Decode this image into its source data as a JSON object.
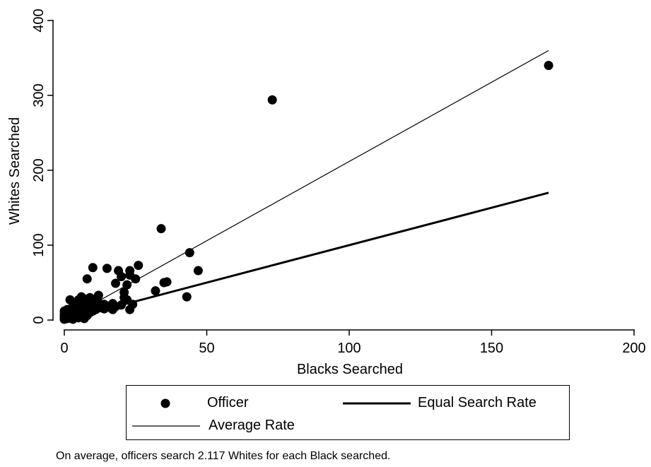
{
  "chart_data": {
    "type": "scatter",
    "xlabel": "Blacks Searched",
    "ylabel": "Whites Searched",
    "xlim": [
      0,
      200
    ],
    "ylim": [
      0,
      400
    ],
    "xticks": [
      "0",
      "50",
      "100",
      "150",
      "200"
    ],
    "yticks": [
      "0",
      "100",
      "200",
      "300",
      "400"
    ],
    "grid": false,
    "legend_position": "bottom",
    "series": [
      {
        "name": "Officer",
        "kind": "scatter",
        "points": [
          [
            0,
            1
          ],
          [
            0,
            3
          ],
          [
            0,
            5
          ],
          [
            0,
            8
          ],
          [
            0,
            12
          ],
          [
            1,
            2
          ],
          [
            1,
            4
          ],
          [
            1,
            6
          ],
          [
            1,
            10
          ],
          [
            1,
            14
          ],
          [
            2,
            3
          ],
          [
            2,
            5
          ],
          [
            2,
            8
          ],
          [
            2,
            11
          ],
          [
            2,
            27
          ],
          [
            3,
            1
          ],
          [
            3,
            6
          ],
          [
            3,
            9
          ],
          [
            3,
            13
          ],
          [
            3,
            18
          ],
          [
            4,
            4
          ],
          [
            4,
            7
          ],
          [
            4,
            12
          ],
          [
            4,
            16
          ],
          [
            4,
            22
          ],
          [
            5,
            3
          ],
          [
            5,
            9
          ],
          [
            5,
            14
          ],
          [
            5,
            20
          ],
          [
            5,
            27
          ],
          [
            6,
            5
          ],
          [
            6,
            11
          ],
          [
            6,
            17
          ],
          [
            6,
            24
          ],
          [
            6,
            31
          ],
          [
            7,
            2
          ],
          [
            7,
            8
          ],
          [
            7,
            15
          ],
          [
            7,
            21
          ],
          [
            7,
            28
          ],
          [
            8,
            6
          ],
          [
            8,
            13
          ],
          [
            8,
            19
          ],
          [
            8,
            26
          ],
          [
            8,
            55
          ],
          [
            9,
            10
          ],
          [
            9,
            16
          ],
          [
            9,
            23
          ],
          [
            9,
            30
          ],
          [
            10,
            12
          ],
          [
            10,
            18
          ],
          [
            10,
            25
          ],
          [
            10,
            70
          ],
          [
            11,
            14
          ],
          [
            11,
            21
          ],
          [
            11,
            28
          ],
          [
            12,
            16
          ],
          [
            12,
            23
          ],
          [
            12,
            33
          ],
          [
            13,
            18
          ],
          [
            14,
            15
          ],
          [
            14,
            21
          ],
          [
            15,
            17
          ],
          [
            15,
            69
          ],
          [
            16,
            19
          ],
          [
            17,
            14
          ],
          [
            17,
            22
          ],
          [
            18,
            18
          ],
          [
            18,
            49
          ],
          [
            19,
            66
          ],
          [
            20,
            20
          ],
          [
            20,
            58
          ],
          [
            21,
            37
          ],
          [
            21,
            30
          ],
          [
            22,
            27
          ],
          [
            22,
            47
          ],
          [
            23,
            60
          ],
          [
            23,
            66
          ],
          [
            23,
            14
          ],
          [
            24,
            21
          ],
          [
            25,
            55
          ],
          [
            26,
            73
          ],
          [
            32,
            39
          ],
          [
            34,
            122
          ],
          [
            35,
            50
          ],
          [
            36,
            51
          ],
          [
            43,
            31
          ],
          [
            44,
            90
          ],
          [
            47,
            66
          ],
          [
            73,
            294
          ],
          [
            170,
            340
          ]
        ]
      },
      {
        "name": "Equal Search Rate",
        "kind": "line",
        "x": [
          0,
          170
        ],
        "y": [
          0,
          170
        ]
      },
      {
        "name": "Average Rate",
        "kind": "line",
        "x": [
          0,
          170
        ],
        "y": [
          0,
          359.9
        ]
      }
    ],
    "note": "On average, officers search 2.117 Whites for each Black searched."
  }
}
